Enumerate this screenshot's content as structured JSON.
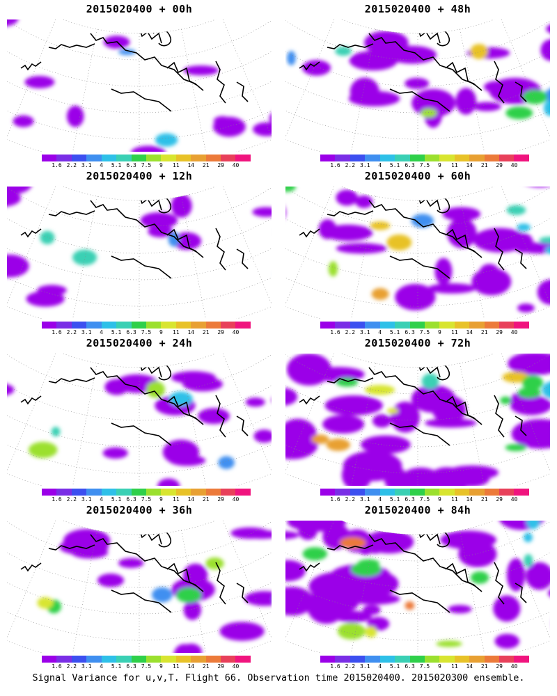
{
  "caption": "Signal Variance for u,v,T. Flight 66. Observation time 2015020400. 2015020300 ensemble.",
  "colorbar": {
    "labels": [
      "1.6",
      "2.2",
      "3.1",
      "4",
      "5.1",
      "6.3",
      "7.5",
      "9",
      "11",
      "14",
      "21",
      "29",
      "40"
    ],
    "colors": [
      "#9b00e8",
      "#7a2ee6",
      "#3c4ff0",
      "#3f8ff0",
      "#2ec0e8",
      "#3ad0b4",
      "#2fd04a",
      "#9be02e",
      "#d8e530",
      "#e8c228",
      "#e8a032",
      "#ec7a3a",
      "#e8405a",
      "#f0147e"
    ]
  },
  "land_color": "#ffffff",
  "coast_color": "#000000",
  "grid_color": "#888888",
  "panels": [
    {
      "title": "2015020400 + 00h",
      "intensity": 0.15
    },
    {
      "title": "2015020400 + 48h",
      "intensity": 0.45
    },
    {
      "title": "2015020400 + 12h",
      "intensity": 0.2
    },
    {
      "title": "2015020400 + 60h",
      "intensity": 0.55
    },
    {
      "title": "2015020400 + 24h",
      "intensity": 0.28
    },
    {
      "title": "2015020400 + 72h",
      "intensity": 0.65
    },
    {
      "title": "2015020400 + 36h",
      "intensity": 0.35
    },
    {
      "title": "2015020400 + 84h",
      "intensity": 0.72
    }
  ]
}
